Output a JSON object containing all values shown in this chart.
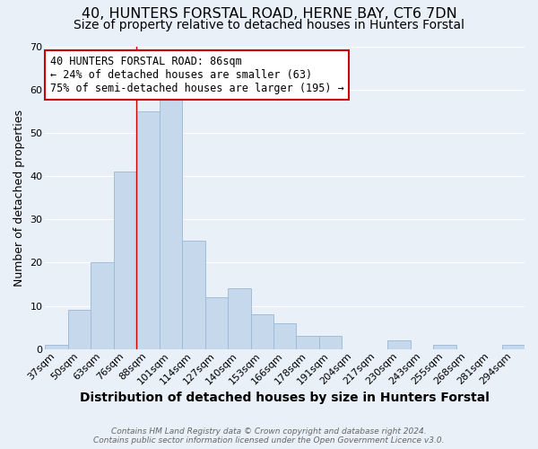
{
  "title": "40, HUNTERS FORSTAL ROAD, HERNE BAY, CT6 7DN",
  "subtitle": "Size of property relative to detached houses in Hunters Forstal",
  "xlabel": "Distribution of detached houses by size in Hunters Forstal",
  "ylabel": "Number of detached properties",
  "bin_labels": [
    "37sqm",
    "50sqm",
    "63sqm",
    "76sqm",
    "88sqm",
    "101sqm",
    "114sqm",
    "127sqm",
    "140sqm",
    "153sqm",
    "166sqm",
    "178sqm",
    "191sqm",
    "204sqm",
    "217sqm",
    "230sqm",
    "243sqm",
    "255sqm",
    "268sqm",
    "281sqm",
    "294sqm"
  ],
  "bar_heights": [
    1,
    9,
    20,
    41,
    55,
    58,
    25,
    12,
    14,
    8,
    6,
    3,
    3,
    0,
    0,
    2,
    0,
    1,
    0,
    0,
    1
  ],
  "bar_color": "#c5d8ec",
  "bar_edge_color": "#9ab8d4",
  "red_line_index": 4,
  "red_line_color": "#cc0000",
  "annotation_text": "40 HUNTERS FORSTAL ROAD: 86sqm\n← 24% of detached houses are smaller (63)\n75% of semi-detached houses are larger (195) →",
  "annotation_box_color": "#ffffff",
  "annotation_box_edge": "#cc0000",
  "ylim": [
    0,
    70
  ],
  "yticks": [
    0,
    10,
    20,
    30,
    40,
    50,
    60,
    70
  ],
  "background_color": "#eaf0f8",
  "plot_background": "#eaf0f8",
  "grid_color": "#ffffff",
  "footer_text": "Contains HM Land Registry data © Crown copyright and database right 2024.\nContains public sector information licensed under the Open Government Licence v3.0.",
  "title_fontsize": 11.5,
  "subtitle_fontsize": 10,
  "xlabel_fontsize": 10,
  "ylabel_fontsize": 9,
  "annotation_fontsize": 8.5,
  "tick_fontsize": 8
}
